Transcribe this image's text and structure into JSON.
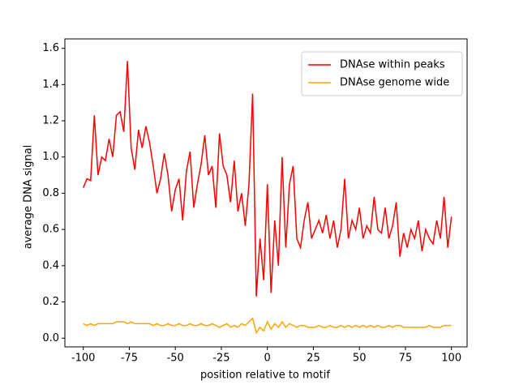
{
  "chart_data": {
    "type": "line",
    "xlabel": "position relative to motif",
    "ylabel": "average DNA signal",
    "x": [
      -100,
      -98,
      -96,
      -94,
      -92,
      -90,
      -88,
      -86,
      -84,
      -82,
      -80,
      -78,
      -76,
      -74,
      -72,
      -70,
      -68,
      -66,
      -64,
      -62,
      -60,
      -58,
      -56,
      -54,
      -52,
      -50,
      -48,
      -46,
      -44,
      -42,
      -40,
      -38,
      -36,
      -34,
      -32,
      -30,
      -28,
      -26,
      -24,
      -22,
      -20,
      -18,
      -16,
      -14,
      -12,
      -10,
      -8,
      -6,
      -4,
      -2,
      0,
      2,
      4,
      6,
      8,
      10,
      12,
      14,
      16,
      18,
      20,
      22,
      24,
      26,
      28,
      30,
      32,
      34,
      36,
      38,
      40,
      42,
      44,
      46,
      48,
      50,
      52,
      54,
      56,
      58,
      60,
      62,
      64,
      66,
      68,
      70,
      72,
      74,
      76,
      78,
      80,
      82,
      84,
      86,
      88,
      90,
      92,
      94,
      96,
      98,
      100
    ],
    "series": [
      {
        "name": "DNAse within peaks",
        "color": "#ff0000",
        "values": [
          0.83,
          0.88,
          0.87,
          1.23,
          0.9,
          1.0,
          0.98,
          1.1,
          1.0,
          1.23,
          1.25,
          1.14,
          1.53,
          1.05,
          0.93,
          1.15,
          1.05,
          1.17,
          1.08,
          0.95,
          0.8,
          0.88,
          1.02,
          0.9,
          0.7,
          0.82,
          0.88,
          0.65,
          0.92,
          1.03,
          0.72,
          0.85,
          0.96,
          1.12,
          0.9,
          0.95,
          0.72,
          1.13,
          0.95,
          0.9,
          0.75,
          0.98,
          0.7,
          0.8,
          0.62,
          0.85,
          1.35,
          0.23,
          0.55,
          0.32,
          0.85,
          0.25,
          0.65,
          0.4,
          1.0,
          0.5,
          0.85,
          0.95,
          0.55,
          0.5,
          0.65,
          0.75,
          0.55,
          0.6,
          0.65,
          0.58,
          0.68,
          0.55,
          0.65,
          0.5,
          0.6,
          0.88,
          0.55,
          0.65,
          0.6,
          0.72,
          0.55,
          0.62,
          0.58,
          0.78,
          0.6,
          0.58,
          0.72,
          0.55,
          0.62,
          0.75,
          0.45,
          0.58,
          0.5,
          0.6,
          0.55,
          0.65,
          0.48,
          0.6,
          0.55,
          0.52,
          0.65,
          0.55,
          0.78,
          0.5,
          0.67
        ]
      },
      {
        "name": "DNAse genome wide",
        "color": "#ffa500",
        "values": [
          0.08,
          0.07,
          0.08,
          0.07,
          0.08,
          0.08,
          0.08,
          0.08,
          0.08,
          0.09,
          0.09,
          0.09,
          0.08,
          0.09,
          0.08,
          0.08,
          0.08,
          0.08,
          0.08,
          0.07,
          0.08,
          0.07,
          0.07,
          0.08,
          0.07,
          0.07,
          0.08,
          0.07,
          0.07,
          0.08,
          0.07,
          0.07,
          0.08,
          0.07,
          0.07,
          0.08,
          0.07,
          0.06,
          0.07,
          0.08,
          0.06,
          0.07,
          0.06,
          0.08,
          0.07,
          0.09,
          0.11,
          0.03,
          0.06,
          0.04,
          0.09,
          0.05,
          0.08,
          0.06,
          0.09,
          0.06,
          0.08,
          0.07,
          0.06,
          0.07,
          0.07,
          0.06,
          0.06,
          0.06,
          0.07,
          0.06,
          0.06,
          0.07,
          0.06,
          0.06,
          0.07,
          0.06,
          0.07,
          0.06,
          0.07,
          0.06,
          0.07,
          0.06,
          0.07,
          0.06,
          0.07,
          0.06,
          0.06,
          0.07,
          0.06,
          0.07,
          0.07,
          0.06,
          0.06,
          0.06,
          0.06,
          0.06,
          0.06,
          0.06,
          0.07,
          0.06,
          0.06,
          0.06,
          0.07,
          0.07,
          0.07
        ]
      }
    ],
    "xlim": [
      -110,
      108.5
    ],
    "xticks": [
      -100,
      -75,
      -50,
      -25,
      0,
      25,
      50,
      75,
      100
    ],
    "ylim": [
      -0.048,
      1.652
    ],
    "yticks": [
      {
        "value": 0,
        "label": "0.0"
      },
      {
        "value": 0.2,
        "label": "0.2"
      },
      {
        "value": 0.4,
        "label": "0.4"
      },
      {
        "value": 0.6,
        "label": "0.6"
      },
      {
        "value": 0.8,
        "label": "0.8"
      },
      {
        "value": 1,
        "label": "1.0"
      },
      {
        "value": 1.2,
        "label": "1.2"
      },
      {
        "value": 1.4,
        "label": "1.4"
      },
      {
        "value": 1.6,
        "label": "1.6"
      }
    ],
    "legend": "upper right"
  }
}
